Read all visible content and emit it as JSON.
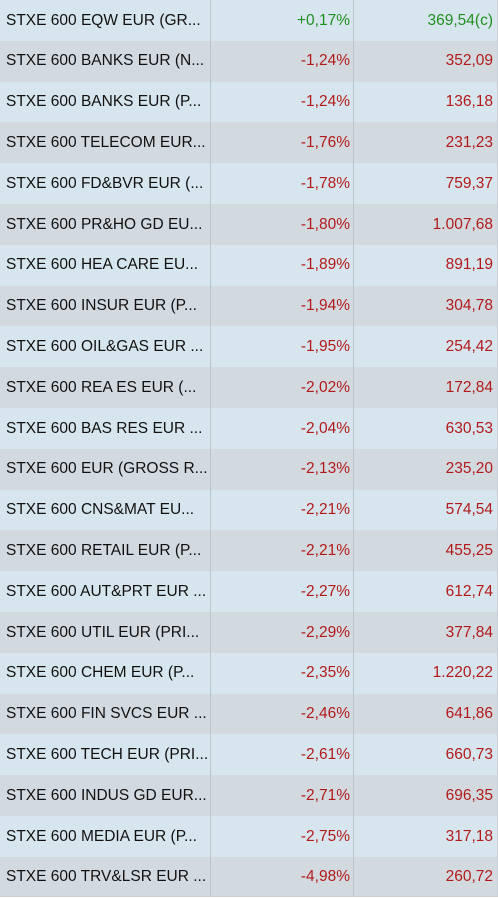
{
  "colors": {
    "row_odd": "#d7e6ee",
    "row_even": "#d3dadf",
    "positive": "#1f8f1f",
    "negative": "#b21a1a",
    "text": "#111111"
  },
  "rows": [
    {
      "name": "STXE 600 EQW EUR (GR...",
      "change": "+0,17%",
      "price": "369,54(c)",
      "direction": "up"
    },
    {
      "name": "STXE 600 BANKS EUR (N...",
      "change": "-1,24%",
      "price": "352,09",
      "direction": "down"
    },
    {
      "name": "STXE 600 BANKS EUR (P...",
      "change": "-1,24%",
      "price": "136,18",
      "direction": "down"
    },
    {
      "name": "STXE 600 TELECOM EUR...",
      "change": "-1,76%",
      "price": "231,23",
      "direction": "down"
    },
    {
      "name": "STXE 600 FD&BVR EUR (...",
      "change": "-1,78%",
      "price": "759,37",
      "direction": "down"
    },
    {
      "name": "STXE 600 PR&HO GD EU...",
      "change": "-1,80%",
      "price": "1.007,68",
      "direction": "down"
    },
    {
      "name": "STXE 600 HEA CARE EU...",
      "change": "-1,89%",
      "price": "891,19",
      "direction": "down"
    },
    {
      "name": "STXE 600 INSUR EUR (P...",
      "change": "-1,94%",
      "price": "304,78",
      "direction": "down"
    },
    {
      "name": "STXE 600 OIL&GAS EUR ...",
      "change": "-1,95%",
      "price": "254,42",
      "direction": "down"
    },
    {
      "name": "STXE 600 REA ES EUR (...",
      "change": "-2,02%",
      "price": "172,84",
      "direction": "down"
    },
    {
      "name": "STXE 600 BAS RES EUR ...",
      "change": "-2,04%",
      "price": "630,53",
      "direction": "down"
    },
    {
      "name": "STXE 600 EUR (GROSS R...",
      "change": "-2,13%",
      "price": "235,20",
      "direction": "down"
    },
    {
      "name": "STXE 600 CNS&MAT EU...",
      "change": "-2,21%",
      "price": "574,54",
      "direction": "down"
    },
    {
      "name": "STXE 600 RETAIL EUR (P...",
      "change": "-2,21%",
      "price": "455,25",
      "direction": "down"
    },
    {
      "name": "STXE 600 AUT&PRT EUR ...",
      "change": "-2,27%",
      "price": "612,74",
      "direction": "down"
    },
    {
      "name": "STXE 600 UTIL EUR (PRI...",
      "change": "-2,29%",
      "price": "377,84",
      "direction": "down"
    },
    {
      "name": "STXE 600 CHEM EUR (P...",
      "change": "-2,35%",
      "price": "1.220,22",
      "direction": "down"
    },
    {
      "name": "STXE 600 FIN SVCS EUR ...",
      "change": "-2,46%",
      "price": "641,86",
      "direction": "down"
    },
    {
      "name": "STXE 600 TECH EUR (PRI...",
      "change": "-2,61%",
      "price": "660,73",
      "direction": "down"
    },
    {
      "name": "STXE 600 INDUS GD EUR...",
      "change": "-2,71%",
      "price": "696,35",
      "direction": "down"
    },
    {
      "name": "STXE 600 MEDIA EUR (P...",
      "change": "-2,75%",
      "price": "317,18",
      "direction": "down"
    },
    {
      "name": "STXE 600 TRV&LSR EUR ...",
      "change": "-4,98%",
      "price": "260,72",
      "direction": "down"
    }
  ]
}
